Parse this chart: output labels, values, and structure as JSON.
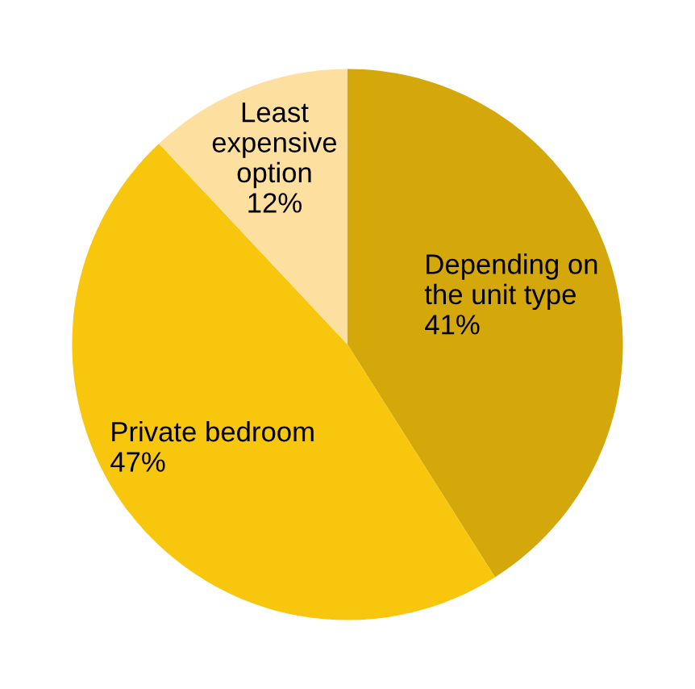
{
  "chart_data": {
    "type": "pie",
    "categories": [
      "Depending on\nthe unit type",
      "Private bedroom",
      "Least\nexpensive\noption"
    ],
    "values": [
      41,
      47,
      12
    ],
    "colors": [
      "#d4a80a",
      "#f8c60c",
      "#fddf9f"
    ],
    "value_labels": [
      "41%",
      "47%",
      "12%"
    ]
  }
}
